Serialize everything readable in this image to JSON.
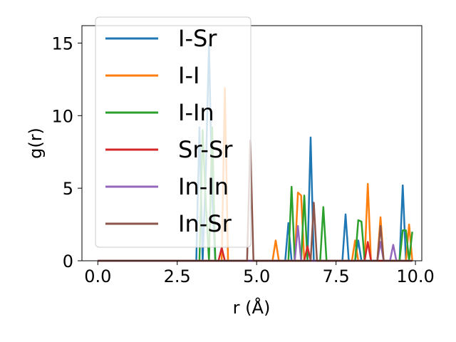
{
  "chart_data": {
    "type": "line",
    "xlabel": "r (Å)",
    "ylabel": "g(r)",
    "xlim": [
      -0.5,
      10.2
    ],
    "ylim": [
      0,
      16.2
    ],
    "xticks": [
      0.0,
      2.5,
      5.0,
      7.5,
      10.0
    ],
    "xtick_labels": [
      "0.0",
      "2.5",
      "5.0",
      "7.5",
      "10.0"
    ],
    "yticks": [
      0,
      5,
      10,
      15
    ],
    "ytick_labels": [
      "0",
      "5",
      "10",
      "15"
    ],
    "grid": false,
    "legend_position": "upper-left",
    "series": [
      {
        "name": "I-Sr",
        "color": "#1f77b4",
        "x": [
          0.0,
          3.1,
          3.2,
          3.3,
          3.4,
          3.5,
          3.6,
          3.7,
          5.9,
          6.0,
          6.1,
          6.6,
          6.7,
          6.8,
          7.7,
          7.8,
          7.9,
          8.1,
          8.2,
          8.3,
          9.5,
          9.6,
          9.7,
          9.9
        ],
        "y": [
          0.0,
          0.0,
          9.2,
          0.0,
          6.0,
          14.9,
          4.5,
          0.0,
          0.0,
          2.6,
          0.0,
          0.0,
          8.5,
          0.0,
          0.0,
          3.2,
          0.0,
          0.0,
          1.4,
          0.0,
          0.0,
          5.2,
          0.0,
          0.0
        ]
      },
      {
        "name": "I-I",
        "color": "#ff7f0e",
        "x": [
          0.0,
          3.8,
          3.9,
          4.0,
          4.1,
          5.5,
          5.6,
          5.7,
          6.2,
          6.3,
          6.4,
          6.5,
          6.6,
          8.0,
          8.1,
          8.2,
          8.4,
          8.5,
          8.6,
          8.8,
          8.9,
          9.0,
          9.7,
          9.8,
          9.9
        ],
        "y": [
          0.0,
          0.0,
          0.0,
          11.9,
          0.0,
          0.0,
          1.4,
          0.0,
          0.0,
          4.7,
          4.5,
          0.0,
          0.0,
          0.0,
          1.4,
          0.0,
          0.0,
          5.3,
          0.0,
          0.0,
          3.0,
          0.0,
          0.0,
          2.5,
          0.0
        ]
      },
      {
        "name": "I-In",
        "color": "#2ca02c",
        "x": [
          0.0,
          3.2,
          3.3,
          3.4,
          3.5,
          3.6,
          3.7,
          6.0,
          6.1,
          6.2,
          6.4,
          6.5,
          6.6,
          7.0,
          7.1,
          7.2,
          8.1,
          8.2,
          8.3,
          8.4,
          9.5,
          9.6,
          9.7,
          9.8,
          9.9
        ],
        "y": [
          0.0,
          0.0,
          9.0,
          4.0,
          0.0,
          9.2,
          0.0,
          0.0,
          5.1,
          0.0,
          0.0,
          4.5,
          0.0,
          0.0,
          3.7,
          0.0,
          0.0,
          2.8,
          2.7,
          0.0,
          0.0,
          2.1,
          2.1,
          0.0,
          2.0
        ]
      },
      {
        "name": "Sr-Sr",
        "color": "#d62728",
        "x": [
          0.0,
          3.8,
          3.9,
          4.0,
          6.5,
          6.6,
          6.7,
          8.4,
          8.5,
          8.6,
          9.9
        ],
        "y": [
          0.0,
          0.0,
          0.9,
          0.0,
          0.0,
          1.0,
          0.0,
          0.0,
          1.3,
          0.0,
          0.0
        ]
      },
      {
        "name": "In-In",
        "color": "#9467bd",
        "x": [
          0.0,
          6.2,
          6.3,
          6.4,
          8.8,
          8.9,
          9.0,
          9.2,
          9.3,
          9.4,
          9.9
        ],
        "y": [
          0.0,
          0.0,
          2.4,
          0.0,
          0.0,
          1.3,
          0.0,
          0.0,
          1.1,
          0.0,
          0.0
        ]
      },
      {
        "name": "In-Sr",
        "color": "#8c564b",
        "x": [
          0.0,
          4.7,
          4.8,
          4.9,
          6.7,
          6.8,
          6.9,
          8.8,
          8.9,
          9.0,
          9.9
        ],
        "y": [
          0.0,
          0.0,
          8.3,
          0.0,
          0.0,
          4.0,
          0.0,
          0.0,
          2.4,
          0.0,
          0.0
        ]
      }
    ]
  }
}
